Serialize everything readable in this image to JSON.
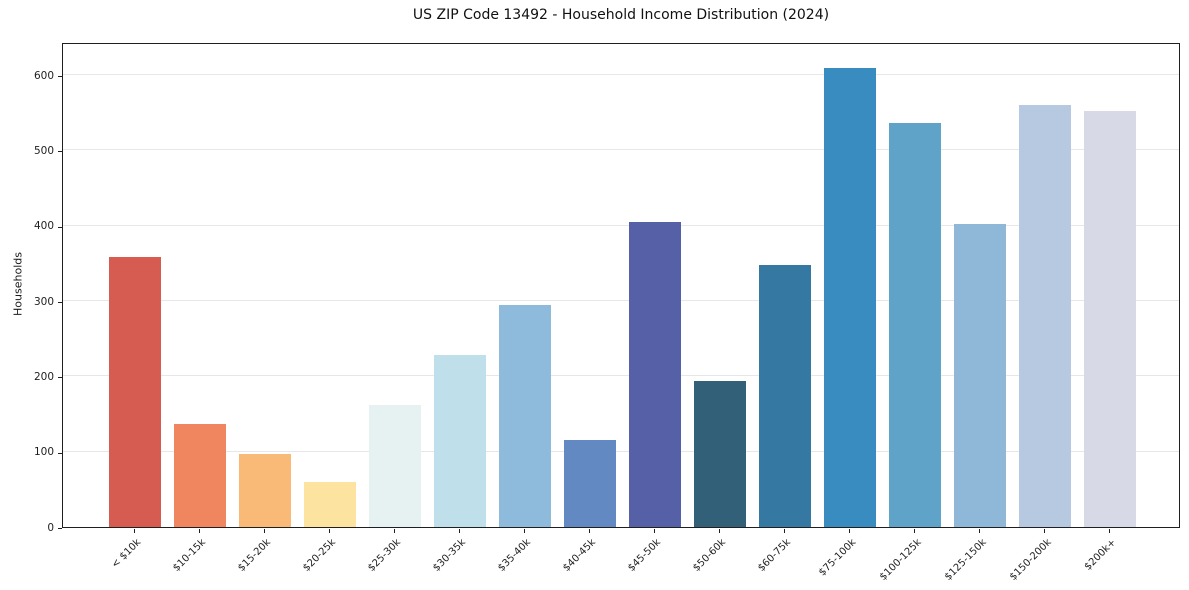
{
  "chart_data": {
    "type": "bar",
    "title": "US ZIP Code 13492 - Household Income Distribution (2024)",
    "xlabel": "",
    "ylabel": "Households",
    "categories": [
      "< $10k",
      "$10-15k",
      "$15-20k",
      "$20-25k",
      "$25-30k",
      "$30-35k",
      "$35-40k",
      "$40-45k",
      "$45-50k",
      "$50-60k",
      "$60-75k",
      "$75-100k",
      "$100-125k",
      "$125-150k",
      "$150-200k",
      "$200k+"
    ],
    "values": [
      358,
      137,
      97,
      60,
      162,
      229,
      295,
      116,
      405,
      194,
      348,
      610,
      536,
      402,
      560,
      553
    ],
    "bar_colors": [
      "#d65c52",
      "#f08660",
      "#f9ba78",
      "#fce3a0",
      "#e5f2f1",
      "#bfdfea",
      "#8ebadb",
      "#6289c1",
      "#5560a7",
      "#336079",
      "#3579a2",
      "#388cc0",
      "#5fa3c8",
      "#8fb7d8",
      "#b7c9e0",
      "#d8d9e6"
    ],
    "yticks": [
      0,
      100,
      200,
      300,
      400,
      500,
      600
    ],
    "ylim": [
      0,
      644
    ],
    "grid": "horizontal",
    "legend_position": "none",
    "x_tick_rotation_deg": 45,
    "spine_color": "#1f1f1f",
    "grid_color": "#e7e7e7"
  }
}
